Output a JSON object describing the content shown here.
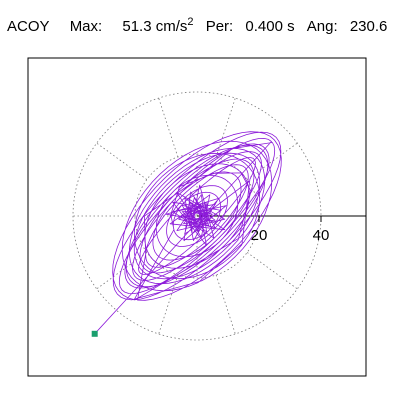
{
  "header": {
    "component": "ACOY",
    "max_label": "Max:",
    "max_value": "51.3 cm/s",
    "max_exp": "2",
    "period_label": "Per:",
    "period_value": "0.400 s",
    "angle_label": "Ang:",
    "angle_value": "230.6"
  },
  "chart_data": {
    "type": "scatter",
    "title": "ACOY  Max: 51.3 cm/s2  Per: 0.400 s  Ang: 230.6",
    "xlabel": "",
    "ylabel": "",
    "axis_ticks": [
      "20",
      "40"
    ],
    "axis_tick_values": [
      20,
      40
    ],
    "polar_grid_radii": [
      20,
      40
    ],
    "polar_grid_spokes_deg": [
      0,
      36,
      72,
      108,
      144,
      180,
      216,
      252,
      288,
      324
    ],
    "grid": "dotted polar",
    "series": [
      {
        "style": "orbit-ellipses",
        "color": "#8c1ad9",
        "orientation_deg": 45,
        "ellipses": [
          [
            34,
            10
          ],
          [
            30,
            12
          ],
          [
            28,
            9
          ],
          [
            25,
            14
          ],
          [
            22,
            8
          ],
          [
            35,
            16
          ],
          [
            31,
            11
          ],
          [
            27,
            15
          ],
          [
            24,
            10
          ],
          [
            20,
            13
          ],
          [
            18,
            9
          ],
          [
            15,
            11
          ],
          [
            12,
            7
          ],
          [
            9,
            6
          ],
          [
            36,
            13
          ],
          [
            29,
            18
          ],
          [
            23,
            17
          ],
          [
            26,
            6
          ]
        ],
        "start_point": [
          -33,
          -38
        ],
        "end_marker": [
          -33,
          -38
        ]
      }
    ],
    "end_marker_color": "#1a9e6e"
  }
}
